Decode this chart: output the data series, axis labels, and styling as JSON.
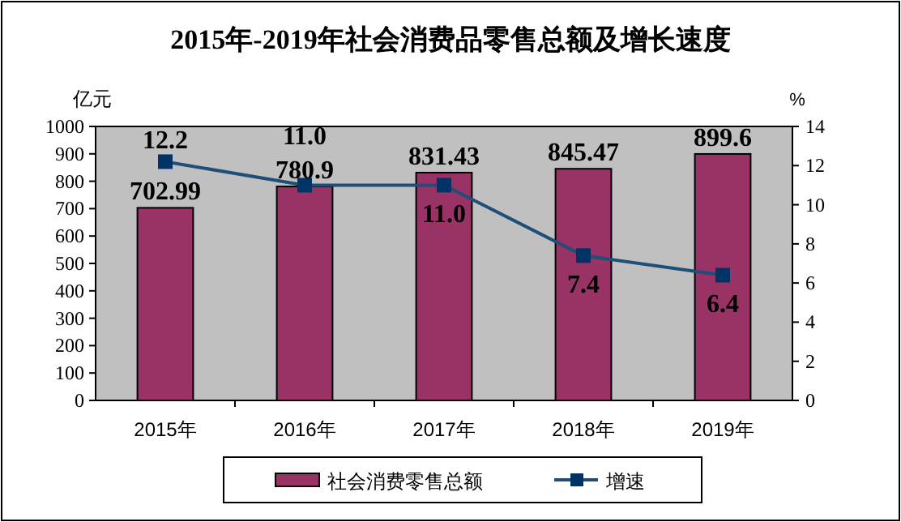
{
  "chart_data": {
    "type": "bar",
    "title": "2015年-2019年社会消费品零售总额及增长速度",
    "ylabel": "亿元",
    "y2label": "%",
    "categories": [
      "2015年",
      "2016年",
      "2017年",
      "2018年",
      "2019年"
    ],
    "series": [
      {
        "name": "社会消费零售总额",
        "color": "#993366",
        "values": [
          702.99,
          780.9,
          831.43,
          845.47,
          899.6
        ],
        "value_labels": [
          "702.99",
          "780.9",
          "831.43",
          "845.47",
          "899.6"
        ]
      },
      {
        "name": "增速",
        "type": "line",
        "axis": "y2",
        "color": "#1f4e79",
        "marker": "square",
        "values": [
          12.2,
          11.0,
          11.0,
          7.4,
          6.4
        ],
        "value_labels": [
          "12.2",
          "11.0",
          "11.0",
          "7.4",
          "6.4"
        ]
      }
    ],
    "ylim": [
      0,
      1000
    ],
    "yticks": [
      0,
      100,
      200,
      300,
      400,
      500,
      600,
      700,
      800,
      900,
      1000
    ],
    "y2lim": [
      0,
      14
    ],
    "y2ticks": [
      0,
      2,
      4,
      6,
      8,
      10,
      12,
      14
    ],
    "grid": false,
    "legend": "bottom"
  }
}
